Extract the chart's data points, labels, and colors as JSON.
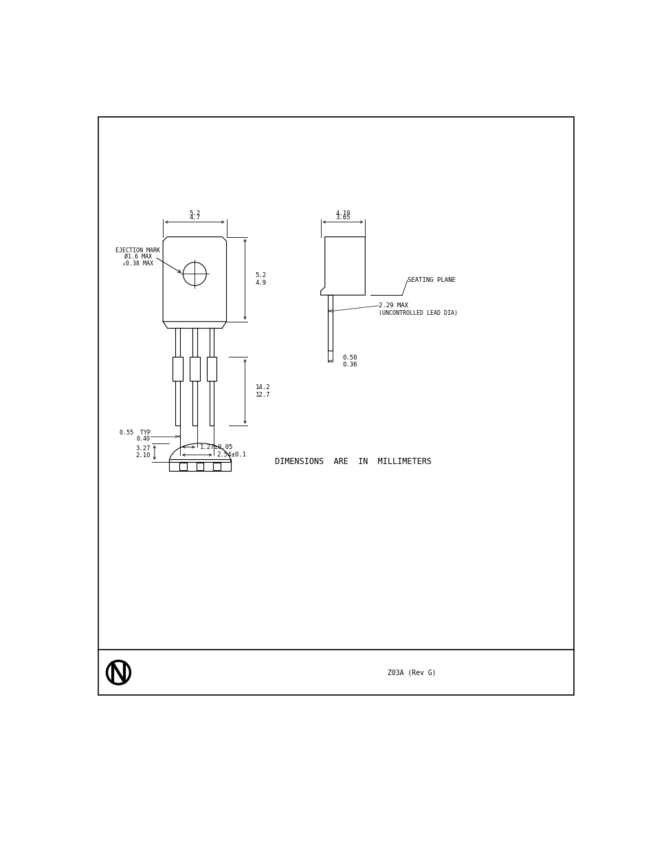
{
  "bg_color": "#ffffff",
  "border_color": "#000000",
  "line_color": "#000000",
  "text_color": "#000000",
  "footer_text": "Z03A (Rev G)",
  "dim_note": "DIMENSIONS  ARE  IN  MILLIMETERS",
  "annotations": {
    "top_width_1": "5.2",
    "top_width_2": "4.7",
    "body_height_1": "5.2",
    "body_height_2": "4.9",
    "lead_length_1": "14.2",
    "lead_length_2": "12.7",
    "lead_width_1": "0.55  TYP",
    "lead_width_2": "0.40",
    "pitch_1": "1.27±0.05",
    "pitch_2": "2.54±0.1",
    "ejection_mark_1": "EJECTION MARK",
    "ejection_mark_2": "Ø1.6 MAX",
    "ejection_mark_3": "↓0.38 MAX",
    "right_width_1": "4.19",
    "right_width_2": "3.65",
    "seating_plane": "SEATING PLANE",
    "lead_dia_1": "2.29 MAX",
    "lead_dia_2": "(UNCONTROLLED LEAD DIA)",
    "lead_thickness_1": "0.50",
    "lead_thickness_2": "0.36",
    "bottom_height_1": "3.27",
    "bottom_height_2": "2.10"
  }
}
